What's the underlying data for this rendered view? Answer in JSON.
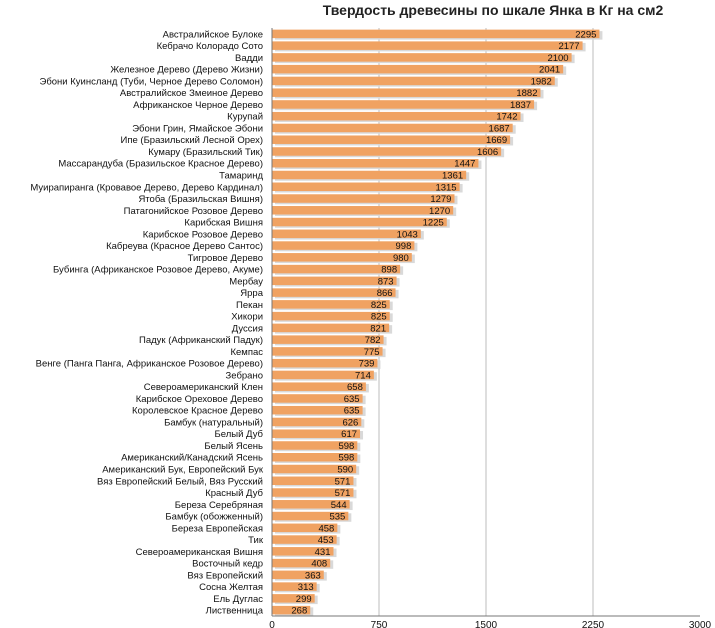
{
  "chart_data": {
    "type": "bar",
    "orientation": "horizontal",
    "title": "Твердость древесины по шкале Янка в Кг на см2",
    "xlim": [
      0,
      3000
    ],
    "xticks": [
      "0",
      "750",
      "1500",
      "2250",
      "3000"
    ],
    "grid": true,
    "bar_color": "#f0a262",
    "categories": [
      "Австралийское Булоке",
      "Кебрачо Колорадо Сото",
      "Вадди",
      "Железное Дерево (Дерево Жизни)",
      "Эбони Куинсланд (Туби, Черное Дерево Соломон)",
      "Австралийское Змеиное Дерево",
      "Африканское Черное Дерево",
      "Курупай",
      "Эбони Грин, Ямайское Эбони",
      "Ипе (Бразильский Лесной Орех)",
      "Кумару (Бразильский Тик)",
      "Массарандуба (Бразильское Красное Дерево)",
      "Тамаринд",
      "Муирапиранга (Кровавое Дерево, Дерево Кардинал)",
      "Ятоба (Бразильская Вишня)",
      "Патагонийское Розовое Дерево",
      "Карибская Вишня",
      "Карибское Розовое Дерево",
      "Кабреува (Красное Дерево Сантос)",
      "Тигровое Дерево",
      "Бубинга (Африканское Розовое Дерево, Акуме)",
      "Мербау",
      "Ярра",
      "Пекан",
      "Хикори",
      "Дуссия",
      "Падук (Африканский Падук)",
      "Кемпас",
      "Венге (Панга Панга, Африканское Розовое Дерево)",
      "Зебрано",
      "Североамериканский Клен",
      "Карибское Ореховое Дерево",
      "Королевское Красное Дерево",
      "Бамбук (натуральный)",
      "Белый Дуб",
      "Белый Ясень",
      "Американский/Канадский Ясень",
      "Американский Бук, Европейский Бук",
      "Вяз Европейский Белый, Вяз Русский",
      "Красный Дуб",
      "Береза Серебряная",
      "Бамбук (обожженный)",
      "Береза Европейская",
      "Тик",
      "Североамериканская Вишня",
      "Восточный кедр",
      "Вяз Европейский",
      "Сосна Желтая",
      "Ель Дуглас",
      "Лиственница"
    ],
    "values": [
      2295,
      2177,
      2100,
      2041,
      1982,
      1882,
      1837,
      1742,
      1687,
      1669,
      1606,
      1447,
      1361,
      1315,
      1279,
      1270,
      1225,
      1043,
      998,
      980,
      898,
      873,
      866,
      825,
      825,
      821,
      782,
      775,
      739,
      714,
      658,
      635,
      635,
      626,
      617,
      598,
      598,
      590,
      571,
      571,
      544,
      535,
      458,
      453,
      431,
      408,
      363,
      313,
      299,
      268
    ]
  }
}
